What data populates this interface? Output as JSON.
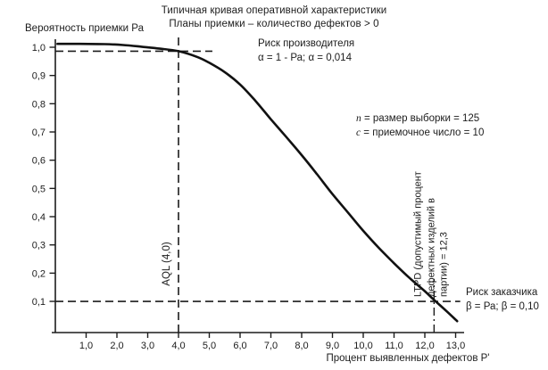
{
  "page": {
    "background": "#ffffff",
    "text_color": "#1c1c1c"
  },
  "chart_data": {
    "type": "line",
    "title": "Типичная кривая оперативной характеристики",
    "subtitle": "Планы приемки – количество дефектов > 0",
    "ylabel": "Вероятность приемки Ра",
    "xlabel": "Процент выявленных дефектов Р'",
    "xlim": [
      0,
      13.3
    ],
    "ylim": [
      0,
      1.05
    ],
    "grid": false,
    "legend": "none",
    "curve_color": "#111111",
    "axis_color": "#1c1c1c",
    "x_ticks": [
      {
        "v": 1,
        "label": "1,0"
      },
      {
        "v": 2,
        "label": "2,0"
      },
      {
        "v": 3,
        "label": "3,0"
      },
      {
        "v": 4,
        "label": "4,0"
      },
      {
        "v": 5,
        "label": "5,0"
      },
      {
        "v": 6,
        "label": "6,0"
      },
      {
        "v": 7,
        "label": "7,0"
      },
      {
        "v": 8,
        "label": "8,0"
      },
      {
        "v": 9,
        "label": "9,0"
      },
      {
        "v": 10,
        "label": "10,0"
      },
      {
        "v": 11,
        "label": "11,0"
      },
      {
        "v": 12,
        "label": "12,0"
      },
      {
        "v": 13,
        "label": "13,0"
      }
    ],
    "y_ticks": [
      {
        "v": 0.1,
        "label": "0,1"
      },
      {
        "v": 0.2,
        "label": "0,2"
      },
      {
        "v": 0.3,
        "label": "0,3"
      },
      {
        "v": 0.4,
        "label": "0,4"
      },
      {
        "v": 0.5,
        "label": "0,5"
      },
      {
        "v": 0.6,
        "label": "0,6"
      },
      {
        "v": 0.7,
        "label": "0,7"
      },
      {
        "v": 0.8,
        "label": "0,8"
      },
      {
        "v": 0.9,
        "label": "0,9"
      },
      {
        "v": 1.0,
        "label": "1,0"
      }
    ],
    "series": [
      {
        "name": "Pa",
        "points": [
          [
            0.07,
            1.012
          ],
          [
            0.8,
            1.012
          ],
          [
            1.6,
            1.011
          ],
          [
            2.2,
            1.008
          ],
          [
            2.8,
            1.002
          ],
          [
            3.4,
            0.995
          ],
          [
            4.0,
            0.986
          ],
          [
            4.6,
            0.966
          ],
          [
            5.0,
            0.945
          ],
          [
            5.5,
            0.912
          ],
          [
            6.0,
            0.868
          ],
          [
            6.5,
            0.81
          ],
          [
            7.0,
            0.745
          ],
          [
            7.5,
            0.682
          ],
          [
            8.0,
            0.618
          ],
          [
            8.5,
            0.55
          ],
          [
            9.0,
            0.48
          ],
          [
            9.5,
            0.415
          ],
          [
            10.0,
            0.35
          ],
          [
            10.5,
            0.29
          ],
          [
            11.0,
            0.235
          ],
          [
            11.5,
            0.183
          ],
          [
            12.0,
            0.136
          ],
          [
            12.3,
            0.105
          ],
          [
            12.7,
            0.066
          ],
          [
            13.05,
            0.03
          ]
        ]
      }
    ],
    "guides": {
      "producer_risk_pa": 0.986,
      "producer_line_end_x": 5.1,
      "aql_x": 4.0,
      "aql_line_top_pa": 1.04,
      "consumer_risk_pa": 0.1,
      "consumer_line_end_x": 13.15,
      "ltpd_x": 12.3,
      "ltpd_line_top_pa": 0.18
    }
  },
  "annotations": {
    "producer_risk": {
      "line1": "Риск производителя",
      "line2": "α = 1 - Ра; α = 0,014"
    },
    "sample": {
      "n_var": "n",
      "n_rest": " = размер выборки = 125",
      "c_var": "c",
      "c_rest": " = приемочное число = 10"
    },
    "consumer_risk": {
      "line1": "Риск заказчика",
      "line2": "β = Ра; β = 0,10"
    },
    "aql": {
      "label": "AQL (4,0)"
    },
    "ltpd": {
      "lines": [
        "LTPD (допустимый",
        "процент дефектных",
        "изделий в партии) = 12,3"
      ]
    }
  }
}
